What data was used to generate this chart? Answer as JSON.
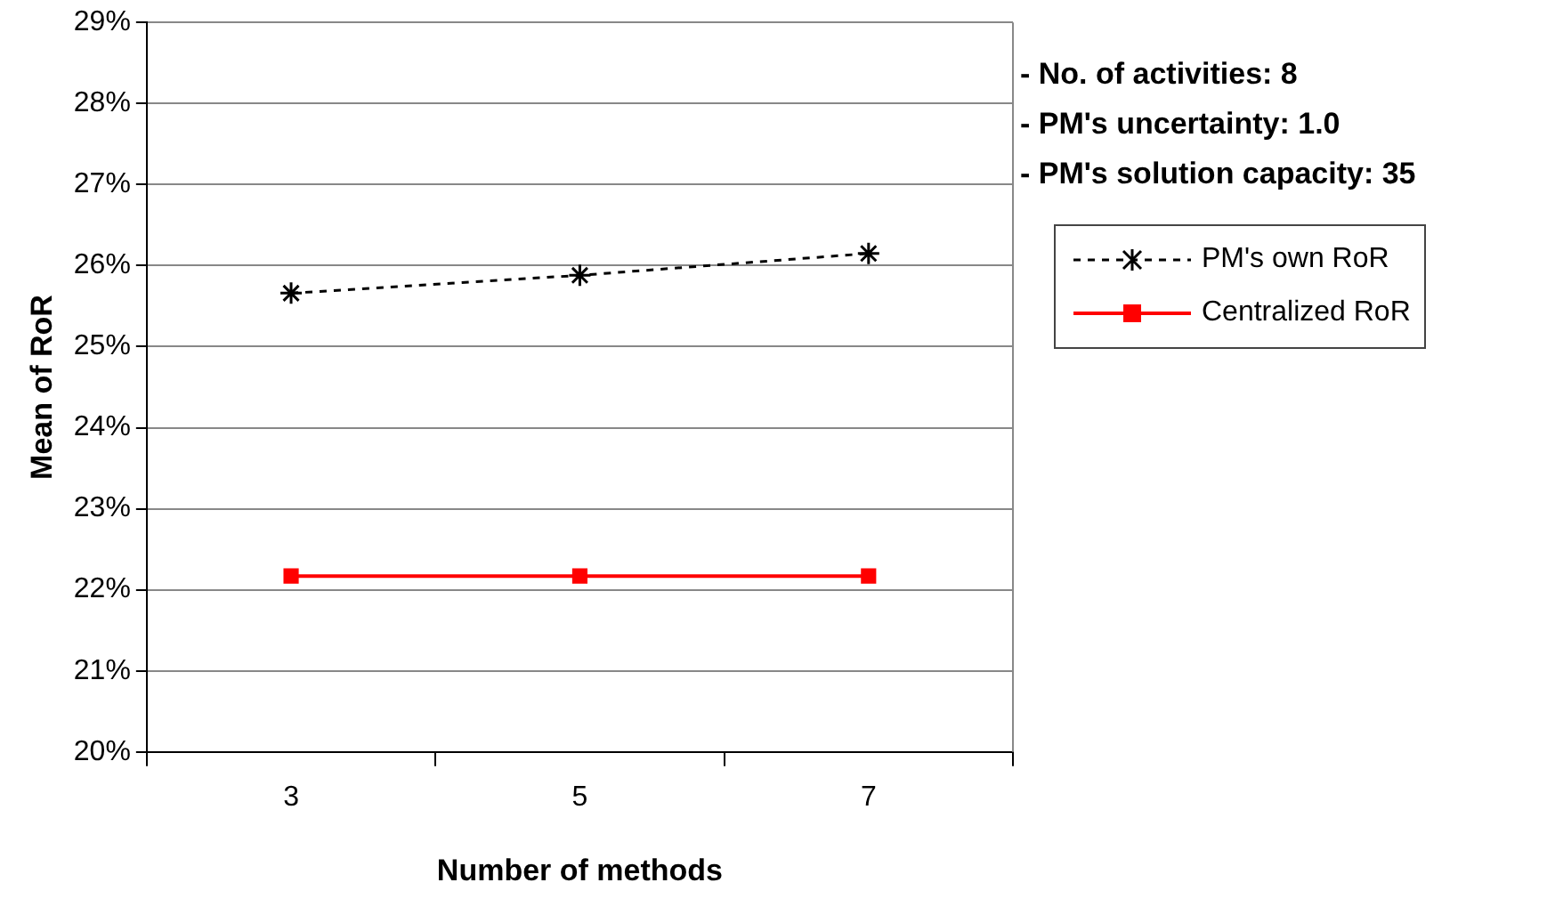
{
  "chart_data": {
    "type": "line",
    "xlabel": "Number of methods",
    "ylabel": "Mean of RoR",
    "categories": [
      "3",
      "5",
      "7"
    ],
    "series": [
      {
        "name": "PM's own RoR",
        "color": "#000000",
        "values": [
          25.66,
          25.88,
          26.15
        ],
        "marker": "cross",
        "line_style": "dashed"
      },
      {
        "name": "Centralized RoR",
        "color": "#ff0000",
        "values": [
          22.17,
          22.17,
          22.17
        ],
        "marker": "square",
        "line_style": "solid"
      }
    ],
    "ylim": [
      20,
      29
    ],
    "yticks": [
      {
        "value": 20,
        "label": "20%"
      },
      {
        "value": 21,
        "label": "21%"
      },
      {
        "value": 22,
        "label": "22%"
      },
      {
        "value": 23,
        "label": "23%"
      },
      {
        "value": 24,
        "label": "24%"
      },
      {
        "value": 25,
        "label": "25%"
      },
      {
        "value": 26,
        "label": "26%"
      },
      {
        "value": 27,
        "label": "27%"
      },
      {
        "value": 28,
        "label": "28%"
      },
      {
        "value": 29,
        "label": "29%"
      }
    ],
    "grid": "y",
    "legend": "right",
    "annotations": [
      "- No. of activities: 8",
      "- PM's uncertainty: 1.0",
      "- PM's solution capacity: 35"
    ]
  }
}
